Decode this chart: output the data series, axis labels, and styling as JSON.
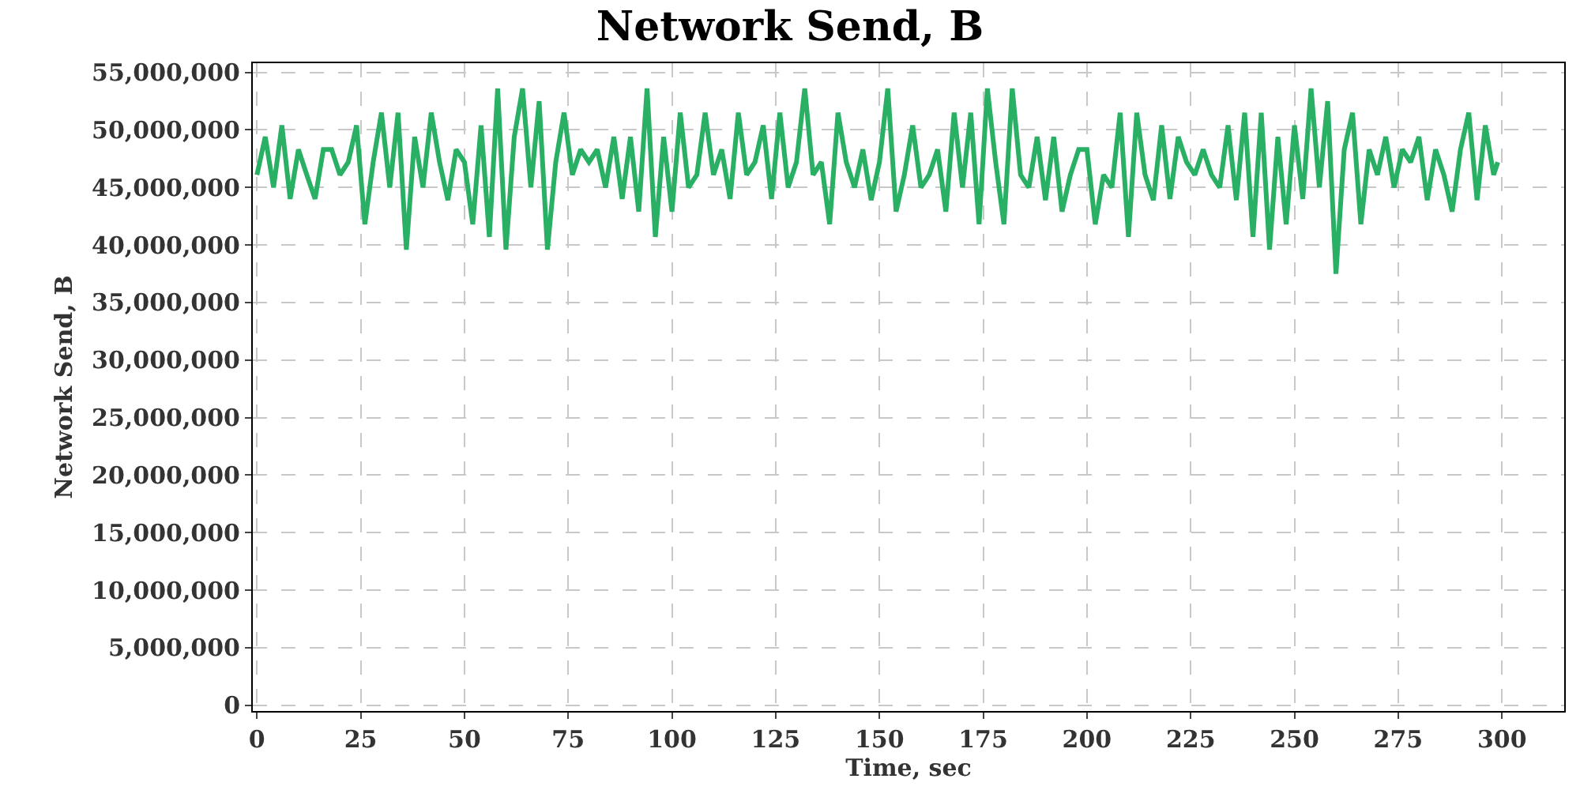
{
  "chart_data": {
    "type": "line",
    "title": "Network Send, B",
    "xlabel": "Time, sec",
    "ylabel": "Network Send, B",
    "x": [
      0,
      2,
      4,
      6,
      8,
      10,
      12,
      14,
      16,
      18,
      20,
      22,
      24,
      26,
      28,
      30,
      32,
      34,
      36,
      38,
      40,
      42,
      44,
      46,
      48,
      50,
      52,
      54,
      56,
      58,
      60,
      62,
      64,
      66,
      68,
      70,
      72,
      74,
      76,
      78,
      80,
      82,
      84,
      86,
      88,
      90,
      92,
      94,
      96,
      98,
      100,
      102,
      104,
      106,
      108,
      110,
      112,
      114,
      116,
      118,
      120,
      122,
      124,
      126,
      128,
      130,
      132,
      134,
      136,
      138,
      140,
      142,
      144,
      146,
      148,
      150,
      152,
      154,
      156,
      158,
      160,
      162,
      164,
      166,
      168,
      170,
      172,
      174,
      176,
      178,
      180,
      182,
      184,
      186,
      188,
      190,
      192,
      194,
      196,
      198,
      200,
      202,
      204,
      206,
      208,
      210,
      212,
      214,
      216,
      218,
      220,
      222,
      224,
      226,
      228,
      230,
      232,
      234,
      236,
      238,
      240,
      242,
      244,
      246,
      248,
      250,
      252,
      254,
      256,
      258,
      260,
      262,
      264,
      266,
      268,
      270,
      272,
      274,
      276,
      278,
      280,
      282,
      284,
      286,
      288,
      290,
      292,
      294,
      296,
      298,
      299
    ],
    "series": [
      {
        "color": "#2ab064",
        "values": [
          46100000,
          49400000,
          45000000,
          50400000,
          44000000,
          48300000,
          46100000,
          44000000,
          48300000,
          48300000,
          46100000,
          47200000,
          50400000,
          41800000,
          47200000,
          51500000,
          45000000,
          51500000,
          39600000,
          49400000,
          45000000,
          51500000,
          47200000,
          43900000,
          48300000,
          47200000,
          41800000,
          50400000,
          40700000,
          53600000,
          39600000,
          49400000,
          53600000,
          45000000,
          52500000,
          39600000,
          47200000,
          51500000,
          46100000,
          48300000,
          47200000,
          48300000,
          45000000,
          49400000,
          44000000,
          49400000,
          42900000,
          53600000,
          40700000,
          49400000,
          42900000,
          51500000,
          45000000,
          46100000,
          51500000,
          46100000,
          48300000,
          44000000,
          51500000,
          46100000,
          47200000,
          50400000,
          44000000,
          51500000,
          45000000,
          47200000,
          53600000,
          46100000,
          47200000,
          41800000,
          51500000,
          47200000,
          45000000,
          48300000,
          43900000,
          47200000,
          53600000,
          42900000,
          46100000,
          50400000,
          45000000,
          46100000,
          48300000,
          42900000,
          51500000,
          45000000,
          51500000,
          41800000,
          53600000,
          47200000,
          41800000,
          53600000,
          46100000,
          45000000,
          49400000,
          43900000,
          49400000,
          42900000,
          46100000,
          48300000,
          48300000,
          41800000,
          46100000,
          45000000,
          51500000,
          40700000,
          51500000,
          46100000,
          43900000,
          50400000,
          44000000,
          49400000,
          47200000,
          46100000,
          48300000,
          46100000,
          45000000,
          50400000,
          43900000,
          51500000,
          40700000,
          51500000,
          39600000,
          49400000,
          41800000,
          50400000,
          44000000,
          53600000,
          45000000,
          52500000,
          37500000,
          48300000,
          51500000,
          41800000,
          48300000,
          46100000,
          49400000,
          45000000,
          48300000,
          47200000,
          49400000,
          43900000,
          48300000,
          46100000,
          42900000,
          48300000,
          51500000,
          43900000,
          50400000,
          46100000,
          47200000
        ]
      }
    ],
    "xlim": [
      -1,
      315
    ],
    "xticks": [
      0,
      25,
      50,
      75,
      100,
      125,
      150,
      175,
      200,
      225,
      250,
      275,
      300
    ],
    "ylim": [
      -500000,
      55800000
    ],
    "yticks": [
      {
        "value": 0,
        "label": "0"
      },
      {
        "value": 5000000,
        "label": "5,000,000"
      },
      {
        "value": 10000000,
        "label": "10,000,000"
      },
      {
        "value": 15000000,
        "label": "15,000,000"
      },
      {
        "value": 20000000,
        "label": "20,000,000"
      },
      {
        "value": 25000000,
        "label": "25,000,000"
      },
      {
        "value": 30000000,
        "label": "30,000,000"
      },
      {
        "value": 35000000,
        "label": "35,000,000"
      },
      {
        "value": 40000000,
        "label": "40,000,000"
      },
      {
        "value": 45000000,
        "label": "45,000,000"
      },
      {
        "value": 50000000,
        "label": "50,000,000"
      },
      {
        "value": 55000000,
        "label": "55,000,000"
      }
    ],
    "grid": true,
    "legend": false,
    "marker": "none",
    "line_style": "solid"
  }
}
